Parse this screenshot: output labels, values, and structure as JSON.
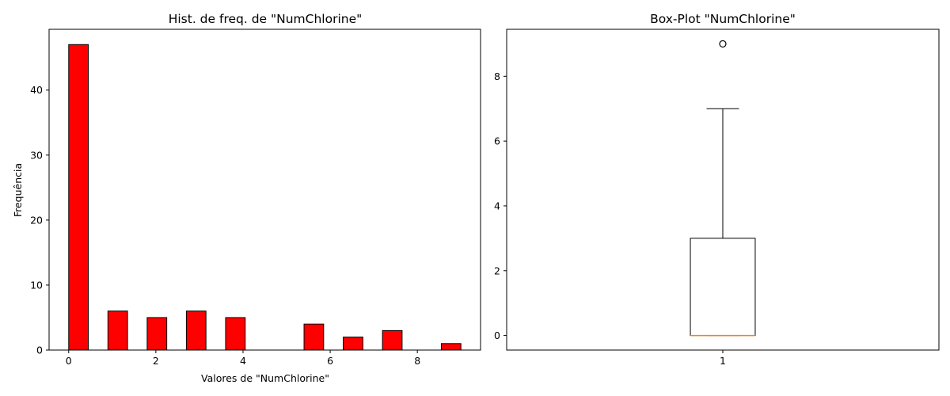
{
  "chart_data": [
    {
      "type": "bar",
      "title": "Hist. de freq. de \"NumChlorine\"",
      "xlabel": "Valores de \"NumChlorine\"",
      "ylabel": "Frequência",
      "bins": [
        {
          "x0": 0.0,
          "x1": 0.45,
          "count": 47
        },
        {
          "x0": 0.9,
          "x1": 1.35,
          "count": 6
        },
        {
          "x0": 1.8,
          "x1": 2.25,
          "count": 5
        },
        {
          "x0": 2.7,
          "x1": 3.15,
          "count": 6
        },
        {
          "x0": 3.6,
          "x1": 4.05,
          "count": 5
        },
        {
          "x0": 4.5,
          "x1": 4.95,
          "count": 0
        },
        {
          "x0": 5.4,
          "x1": 5.85,
          "count": 4
        },
        {
          "x0": 6.3,
          "x1": 6.75,
          "count": 2
        },
        {
          "x0": 7.2,
          "x1": 7.65,
          "count": 3
        },
        {
          "x0": 8.1,
          "x1": 8.55,
          "count": 0
        },
        {
          "x0": 8.55,
          "x1": 9.0,
          "count": 1
        }
      ],
      "xlim": [
        -0.45,
        9.45
      ],
      "ylim": [
        0,
        49.35
      ],
      "xticks": [
        0,
        2,
        4,
        6,
        8
      ],
      "yticks": [
        0,
        10,
        20,
        30,
        40
      ],
      "bar_color": "#ff0000",
      "edge_color": "#000000",
      "grid": false
    },
    {
      "type": "boxplot",
      "title": "Box-Plot \"NumChlorine\"",
      "position": 1,
      "min_whisker": 0,
      "q1": 0,
      "median": 0,
      "q3": 3,
      "max_whisker": 7,
      "outliers": [
        9
      ],
      "xlim": [
        0.5,
        1.5
      ],
      "ylim": [
        -0.45,
        9.45
      ],
      "xticks": [
        1
      ],
      "yticks": [
        0,
        2,
        4,
        6,
        8
      ],
      "median_color": "#ff7f0e",
      "grid": false
    }
  ]
}
